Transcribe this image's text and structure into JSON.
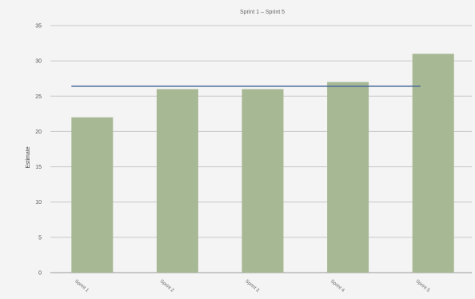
{
  "chart_data": {
    "type": "bar",
    "title": "Sprint 1 – Sprint 5",
    "xlabel": "",
    "ylabel": "Estimate",
    "categories": [
      "Sprint 1",
      "Sprint 2",
      "Sprint 3",
      "Sprint 4",
      "Sprint 5"
    ],
    "series": [
      {
        "values": [
          22,
          26,
          26,
          27,
          31
        ],
        "color": "#a7b894"
      }
    ],
    "reference_line": {
      "value": 26.4,
      "color": "#4a6a9a"
    },
    "ylim": [
      0,
      35
    ],
    "yticks": [
      0,
      5,
      10,
      15,
      20,
      25,
      30,
      35
    ],
    "grid": true,
    "legend": "none"
  }
}
